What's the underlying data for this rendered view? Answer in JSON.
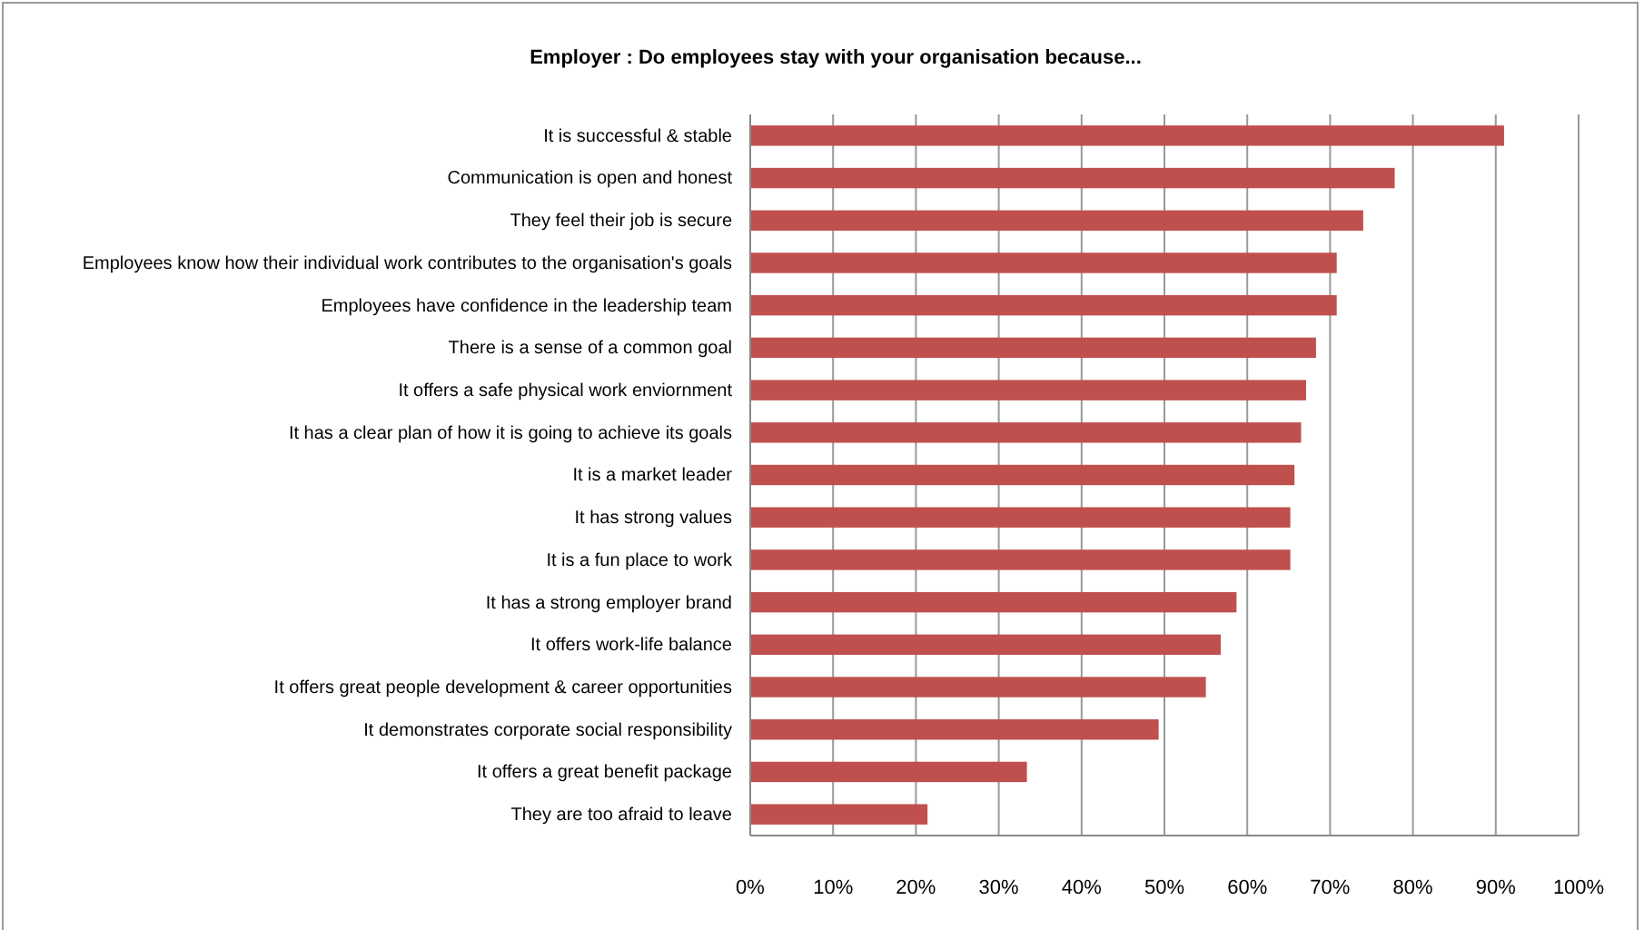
{
  "chart_data": {
    "type": "bar",
    "orientation": "horizontal",
    "title": "Employer : Do employees stay with your organisation  because...",
    "categories": [
      "It is successful & stable",
      "Communication is open and honest",
      "They feel their job is secure",
      "Employees know how their individual work contributes to the organisation's goals",
      "Employees have confidence in the leadership team",
      "There is a sense of a common goal",
      "It offers a safe physical work enviornment",
      "It has a clear plan of how it is going to achieve its goals",
      "It is a market leader",
      "It has strong values",
      "It is a fun place to work",
      "It has a strong employer brand",
      "It offers work-life balance",
      "It offers great people development & career opportunities",
      "It demonstrates corporate social responsibility",
      "It offers a great benefit package",
      "They are too afraid to leave"
    ],
    "values": [
      91.0,
      77.8,
      74.0,
      70.8,
      70.8,
      68.3,
      67.1,
      66.5,
      65.7,
      65.2,
      65.2,
      58.7,
      56.8,
      55.0,
      49.3,
      33.4,
      21.4
    ],
    "color": "#c0504d",
    "xlim": [
      0,
      100
    ],
    "xticks": [
      {
        "value": 0,
        "label": "0%"
      },
      {
        "value": 10,
        "label": "10%"
      },
      {
        "value": 20,
        "label": "20%"
      },
      {
        "value": 30,
        "label": "30%"
      },
      {
        "value": 40,
        "label": "40%"
      },
      {
        "value": 50,
        "label": "50%"
      },
      {
        "value": 60,
        "label": "60%"
      },
      {
        "value": 70,
        "label": "70%"
      },
      {
        "value": 80,
        "label": "80%"
      },
      {
        "value": 90,
        "label": "90%"
      },
      {
        "value": 100,
        "label": "100%"
      }
    ],
    "grid": "x"
  }
}
